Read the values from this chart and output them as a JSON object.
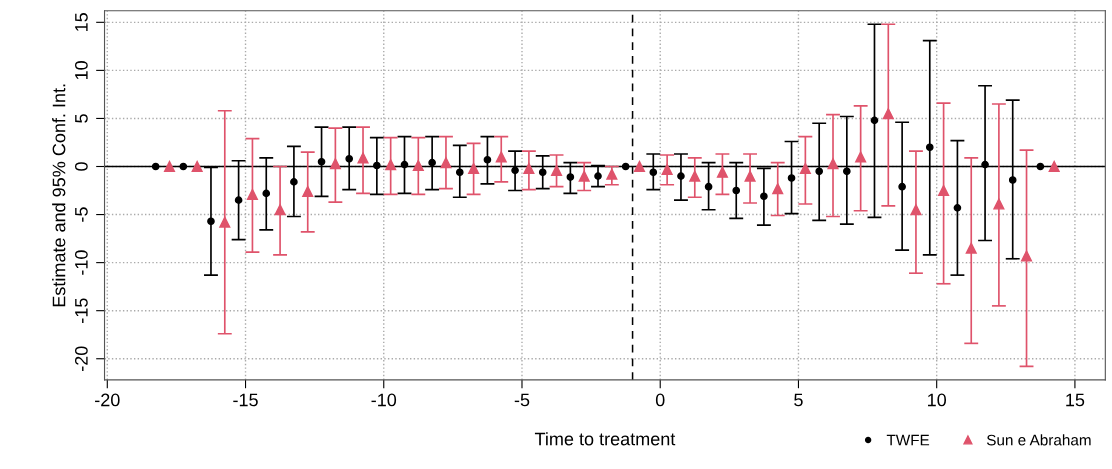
{
  "chart_data": {
    "type": "scatter",
    "xlabel": "Time to treatment",
    "ylabel": "Estimate and 95% Conf. Int.",
    "xlim": [
      -20.1,
      16.1
    ],
    "ylim": [
      -22.2,
      16.2
    ],
    "xticks": [
      -20,
      -15,
      -10,
      -5,
      0,
      5,
      10,
      15
    ],
    "yticks": [
      -20,
      -15,
      -10,
      -5,
      0,
      5,
      10,
      15
    ],
    "grid": true,
    "legend": "bottom right",
    "ref_lines": [
      {
        "axis": "y",
        "value": 0,
        "color": "#000000",
        "line_style": "solid"
      },
      {
        "axis": "x",
        "value": -1,
        "color": "#000000",
        "line_style": "dashed"
      }
    ],
    "series": [
      {
        "name": "TWFE",
        "color": "#000000",
        "marker": "circle",
        "x": [
          -18.25,
          -17.25,
          -16.25,
          -15.25,
          -14.25,
          -13.25,
          -12.25,
          -11.25,
          -10.25,
          -9.25,
          -8.25,
          -7.25,
          -6.25,
          -5.25,
          -4.25,
          -3.25,
          -2.25,
          -1.25,
          -0.25,
          0.75,
          1.75,
          2.75,
          3.75,
          4.75,
          5.75,
          6.75,
          7.75,
          8.75,
          9.75,
          10.75,
          11.75,
          12.75,
          13.75
        ],
        "values": [
          0,
          0,
          -5.7,
          -3.5,
          -2.8,
          -1.6,
          0.5,
          0.8,
          0.1,
          0.2,
          0.4,
          -0.6,
          0.7,
          -0.4,
          -0.6,
          -1.1,
          -1.0,
          0,
          -0.6,
          -1.0,
          -2.1,
          -2.5,
          -3.1,
          -1.2,
          -0.5,
          -0.5,
          4.8,
          -2.1,
          2.0,
          -4.3,
          0.2,
          -1.4,
          0
        ],
        "errors": [
          null,
          null,
          [
            -11.3,
            -0.1
          ],
          [
            -7.6,
            0.6
          ],
          [
            -6.6,
            0.9
          ],
          [
            -5.2,
            2.1
          ],
          [
            -3.1,
            4.1
          ],
          [
            -2.4,
            4.1
          ],
          [
            -2.9,
            3.0
          ],
          [
            -2.8,
            3.1
          ],
          [
            -2.4,
            3.1
          ],
          [
            -3.2,
            2.2
          ],
          [
            -1.8,
            3.1
          ],
          [
            -2.5,
            1.6
          ],
          [
            -2.3,
            1.1
          ],
          [
            -2.8,
            0.4
          ],
          [
            -2.1,
            0.1
          ],
          null,
          [
            -2.4,
            1.3
          ],
          [
            -3.5,
            1.3
          ],
          [
            -4.5,
            0.4
          ],
          [
            -5.4,
            0.4
          ],
          [
            -6.1,
            -0.2
          ],
          [
            -4.9,
            2.6
          ],
          [
            -5.6,
            4.5
          ],
          [
            -6.0,
            5.2
          ],
          [
            -5.3,
            14.8
          ],
          [
            -8.7,
            4.6
          ],
          [
            -9.2,
            13.1
          ],
          [
            -11.3,
            2.7
          ],
          [
            -7.7,
            8.4
          ],
          [
            -9.6,
            6.9
          ],
          null
        ]
      },
      {
        "name": "Sun e Abraham",
        "color": "#df536b",
        "marker": "triangle",
        "x": [
          -17.75,
          -16.75,
          -15.75,
          -14.75,
          -13.75,
          -12.75,
          -11.75,
          -10.75,
          -9.75,
          -8.75,
          -7.75,
          -6.75,
          -5.75,
          -4.75,
          -3.75,
          -2.75,
          -1.75,
          -0.75,
          0.25,
          1.25,
          2.25,
          3.25,
          4.25,
          5.25,
          6.25,
          7.25,
          8.25,
          9.25,
          10.25,
          11.25,
          12.25,
          13.25,
          14.25
        ],
        "values": [
          0,
          0,
          -5.8,
          -2.9,
          -4.5,
          -2.6,
          0.3,
          0.9,
          0.2,
          0.1,
          0.4,
          -0.2,
          1.0,
          -0.2,
          -0.4,
          -1.0,
          -0.8,
          0,
          -0.3,
          -1.0,
          -0.6,
          -1.0,
          -2.3,
          -0.2,
          0.3,
          1.0,
          5.5,
          -4.5,
          -2.5,
          -8.5,
          -3.9,
          -9.3,
          0
        ],
        "errors": [
          null,
          null,
          [
            -17.4,
            5.8
          ],
          [
            -8.9,
            2.9
          ],
          [
            -9.2,
            0
          ],
          [
            -6.8,
            1.5
          ],
          [
            -3.7,
            4.0
          ],
          [
            -2.8,
            4.1
          ],
          [
            -2.9,
            3.0
          ],
          [
            -2.9,
            3.0
          ],
          [
            -2.3,
            3.1
          ],
          [
            -2.9,
            2.4
          ],
          [
            -1.6,
            3.1
          ],
          [
            -2.4,
            1.6
          ],
          [
            -2.1,
            1.2
          ],
          [
            -2.5,
            0.4
          ],
          [
            -1.9,
            0
          ],
          null,
          [
            -1.9,
            1.2
          ],
          [
            -3.2,
            0.9
          ],
          [
            -2.9,
            1.3
          ],
          [
            -3.8,
            1.3
          ],
          [
            -5.1,
            0.4
          ],
          [
            -3.9,
            3.1
          ],
          [
            -5.2,
            5.4
          ],
          [
            -4.6,
            6.3
          ],
          [
            -4.1,
            14.8
          ],
          [
            -11.1,
            1.6
          ],
          [
            -12.2,
            6.6
          ],
          [
            -18.4,
            0.9
          ],
          [
            -14.5,
            6.5
          ],
          [
            -20.8,
            1.7
          ],
          null
        ]
      }
    ]
  }
}
